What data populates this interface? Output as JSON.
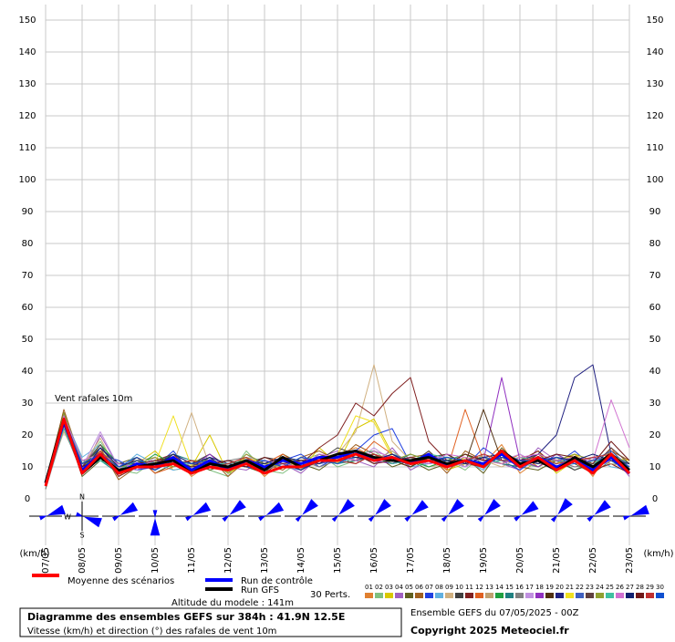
{
  "chart_data": {
    "type": "line",
    "title": "Diagramme des ensembles GEFS sur 384h : 41.9N 12.5E",
    "subtitle": "Vitesse (km/h) et direction (°) des rafales de vent 10m",
    "annotation": "Vent rafales 10m",
    "y_unit": "(km/h)",
    "altitude": "Altitude du modele : 141m",
    "run_info": "Ensemble GEFS du 07/05/2025 - 00Z",
    "copyright": "Copyright 2025 Meteociel.fr",
    "perts_label": "30 Perts.",
    "categories": [
      "07/05",
      null,
      "08/05",
      null,
      "09/05",
      null,
      "10/05",
      null,
      "11/05",
      null,
      "12/05",
      null,
      "13/05",
      null,
      "14/05",
      null,
      "15/05",
      null,
      "16/05",
      null,
      "17/05",
      null,
      "18/05",
      null,
      "19/05",
      null,
      "20/05",
      null,
      "21/05",
      null,
      "22/05",
      null,
      "23/05"
    ],
    "ylim": [
      0,
      150
    ],
    "yticks": [
      0,
      10,
      20,
      30,
      40,
      50,
      60,
      70,
      80,
      90,
      100,
      110,
      120,
      130,
      140,
      150
    ],
    "grid": true,
    "series": [
      {
        "name": "01",
        "color": "#e08030",
        "values": [
          5,
          22,
          9,
          15,
          7,
          12,
          9,
          14,
          7,
          11,
          9,
          13,
          7,
          12,
          10,
          11,
          14,
          16,
          13,
          12,
          10,
          15,
          9,
          12,
          11,
          17,
          8,
          12,
          10,
          14,
          7,
          16,
          8
        ]
      },
      {
        "name": "02",
        "color": "#80c080",
        "values": [
          6,
          26,
          10,
          18,
          9,
          8,
          12,
          10,
          11,
          9,
          7,
          15,
          9,
          8,
          12,
          14,
          10,
          12,
          15,
          11,
          13,
          10,
          12,
          9,
          14,
          12,
          11,
          10,
          13,
          9,
          12,
          11,
          10
        ]
      },
      {
        "name": "03",
        "color": "#d8c800",
        "values": [
          4,
          27,
          12,
          13,
          8,
          11,
          15,
          9,
          10,
          20,
          8,
          11,
          10,
          13,
          9,
          16,
          11,
          22,
          25,
          14,
          12,
          13,
          9,
          11,
          10,
          14,
          12,
          15,
          8,
          12,
          9,
          13,
          11
        ]
      },
      {
        "name": "04",
        "color": "#a060c0",
        "values": [
          5,
          24,
          8,
          20,
          10,
          9,
          11,
          13,
          8,
          12,
          10,
          9,
          12,
          11,
          8,
          13,
          15,
          12,
          10,
          16,
          9,
          12,
          14,
          10,
          13,
          11,
          9,
          16,
          12,
          10,
          11,
          14,
          7
        ]
      },
      {
        "name": "05",
        "color": "#606020",
        "values": [
          3,
          25,
          7,
          12,
          11,
          13,
          8,
          11,
          12,
          9,
          11,
          10,
          8,
          14,
          11,
          9,
          13,
          11,
          14,
          10,
          12,
          9,
          11,
          13,
          8,
          16,
          10,
          9,
          12,
          11,
          8,
          12,
          9
        ]
      },
      {
        "name": "06",
        "color": "#a06020",
        "values": [
          5,
          28,
          11,
          16,
          6,
          10,
          12,
          12,
          9,
          13,
          7,
          12,
          11,
          9,
          13,
          15,
          12,
          17,
          14,
          11,
          13,
          14,
          8,
          15,
          12,
          13,
          11,
          14,
          10,
          13,
          9,
          15,
          12
        ]
      },
      {
        "name": "07",
        "color": "#2040e0",
        "values": [
          4,
          23,
          9,
          14,
          12,
          9,
          10,
          15,
          8,
          11,
          12,
          10,
          9,
          12,
          14,
          10,
          13,
          15,
          20,
          22,
          11,
          13,
          12,
          10,
          16,
          12,
          9,
          13,
          11,
          15,
          10,
          12,
          8
        ]
      },
      {
        "name": "08",
        "color": "#60b0e0",
        "values": [
          6,
          26,
          13,
          17,
          9,
          14,
          11,
          9,
          10,
          12,
          8,
          13,
          12,
          10,
          9,
          14,
          11,
          13,
          12,
          15,
          10,
          11,
          13,
          12,
          9,
          15,
          11,
          12,
          10,
          11,
          13,
          10,
          9
        ]
      },
      {
        "name": "09",
        "color": "#d0b080",
        "values": [
          5,
          21,
          10,
          19,
          8,
          12,
          13,
          11,
          27,
          10,
          9,
          14,
          10,
          11,
          12,
          13,
          14,
          21,
          42,
          18,
          12,
          10,
          11,
          14,
          12,
          10,
          13,
          11,
          12,
          14,
          10,
          13,
          11
        ]
      },
      {
        "name": "10",
        "color": "#404040",
        "values": [
          4,
          27,
          8,
          13,
          10,
          11,
          9,
          12,
          11,
          14,
          10,
          11,
          13,
          12,
          10,
          12,
          16,
          14,
          13,
          12,
          11,
          15,
          10,
          12,
          13,
          11,
          10,
          14,
          12,
          9,
          11,
          12,
          10
        ]
      },
      {
        "name": "11",
        "color": "#802020",
        "values": [
          5,
          26,
          9,
          15,
          7,
          10,
          12,
          14,
          9,
          10,
          11,
          13,
          8,
          12,
          11,
          16,
          20,
          30,
          26,
          33,
          38,
          18,
          12,
          11,
          10,
          14,
          12,
          15,
          10,
          13,
          9,
          11,
          8
        ]
      },
      {
        "name": "12",
        "color": "#e06020",
        "values": [
          5,
          24,
          10,
          14,
          9,
          13,
          8,
          10,
          12,
          11,
          9,
          12,
          11,
          14,
          10,
          12,
          13,
          12,
          18,
          14,
          11,
          13,
          9,
          28,
          12,
          11,
          14,
          10,
          13,
          12,
          11,
          13,
          9
        ]
      },
      {
        "name": "13",
        "color": "#c0a070",
        "values": [
          6,
          25,
          11,
          16,
          10,
          12,
          10,
          13,
          9,
          12,
          10,
          11,
          12,
          10,
          13,
          11,
          14,
          13,
          12,
          15,
          11,
          12,
          13,
          10,
          14,
          12,
          11,
          13,
          10,
          14,
          12,
          11,
          10
        ]
      },
      {
        "name": "14",
        "color": "#20a040",
        "values": [
          4,
          23,
          9,
          17,
          11,
          10,
          14,
          11,
          10,
          13,
          9,
          12,
          10,
          13,
          11,
          12,
          12,
          14,
          15,
          13,
          12,
          10,
          12,
          14,
          11,
          13,
          12,
          10,
          14,
          11,
          13,
          12,
          9
        ]
      },
      {
        "name": "15",
        "color": "#208080",
        "values": [
          5,
          26,
          12,
          12,
          8,
          11,
          11,
          14,
          12,
          10,
          11,
          10,
          11,
          12,
          9,
          13,
          11,
          12,
          13,
          11,
          14,
          12,
          10,
          12,
          13,
          11,
          10,
          12,
          11,
          13,
          10,
          14,
          11
        ]
      },
      {
        "name": "16",
        "color": "#808080",
        "values": [
          3,
          22,
          8,
          15,
          9,
          13,
          10,
          12,
          9,
          11,
          12,
          13,
          9,
          11,
          12,
          10,
          12,
          15,
          11,
          14,
          10,
          13,
          11,
          12,
          10,
          15,
          11,
          13,
          12,
          10,
          11,
          13,
          8
        ]
      },
      {
        "name": "17",
        "color": "#c090e0",
        "values": [
          5,
          25,
          10,
          21,
          10,
          9,
          13,
          10,
          11,
          12,
          8,
          14,
          10,
          12,
          11,
          13,
          14,
          12,
          16,
          12,
          11,
          14,
          12,
          10,
          13,
          12,
          14,
          11,
          13,
          12,
          10,
          12,
          11
        ]
      },
      {
        "name": "18",
        "color": "#9030c0",
        "values": [
          4,
          24,
          9,
          14,
          8,
          12,
          11,
          11,
          10,
          14,
          9,
          11,
          12,
          10,
          13,
          11,
          13,
          14,
          12,
          11,
          13,
          12,
          11,
          13,
          12,
          38,
          12,
          10,
          14,
          11,
          13,
          12,
          10
        ]
      },
      {
        "name": "19",
        "color": "#503010",
        "values": [
          6,
          27,
          11,
          13,
          9,
          10,
          12,
          13,
          8,
          11,
          10,
          12,
          11,
          13,
          10,
          14,
          12,
          13,
          14,
          12,
          10,
          13,
          14,
          11,
          28,
          12,
          11,
          13,
          10,
          12,
          11,
          14,
          10
        ]
      },
      {
        "name": "20",
        "color": "#202080",
        "values": [
          5,
          26,
          10,
          16,
          11,
          11,
          9,
          12,
          10,
          13,
          11,
          10,
          12,
          11,
          9,
          12,
          13,
          14,
          13,
          11,
          12,
          11,
          13,
          12,
          11,
          13,
          12,
          14,
          20,
          38,
          42,
          14,
          9
        ]
      },
      {
        "name": "21",
        "color": "#f0e020",
        "values": [
          4,
          23,
          8,
          15,
          10,
          12,
          11,
          26,
          10,
          12,
          9,
          13,
          11,
          12,
          10,
          13,
          14,
          26,
          24,
          13,
          11,
          12,
          10,
          13,
          12,
          11,
          13,
          12,
          11,
          14,
          10,
          13,
          12
        ]
      },
      {
        "name": "22",
        "color": "#4060c0",
        "values": [
          5,
          25,
          9,
          14,
          9,
          10,
          12,
          11,
          9,
          11,
          10,
          12,
          10,
          11,
          12,
          11,
          12,
          13,
          12,
          14,
          12,
          11,
          12,
          11,
          13,
          12,
          11,
          13,
          12,
          11,
          12,
          15,
          10
        ]
      },
      {
        "name": "23",
        "color": "#604040",
        "values": [
          6,
          24,
          10,
          17,
          8,
          13,
          10,
          12,
          11,
          10,
          12,
          11,
          9,
          13,
          11,
          12,
          13,
          12,
          14,
          12,
          11,
          13,
          12,
          12,
          11,
          14,
          10,
          12,
          13,
          12,
          10,
          16,
          11
        ]
      },
      {
        "name": "24",
        "color": "#90a030",
        "values": [
          4,
          27,
          11,
          15,
          10,
          11,
          13,
          10,
          12,
          12,
          8,
          14,
          11,
          10,
          13,
          12,
          11,
          15,
          13,
          12,
          14,
          12,
          11,
          14,
          12,
          13,
          12,
          11,
          12,
          14,
          12,
          13,
          10
        ]
      },
      {
        "name": "25",
        "color": "#40c0a0",
        "values": [
          5,
          22,
          9,
          12,
          9,
          12,
          11,
          13,
          10,
          11,
          11,
          12,
          10,
          12,
          11,
          13,
          12,
          14,
          13,
          11,
          12,
          14,
          13,
          12,
          11,
          12,
          13,
          12,
          11,
          12,
          11,
          14,
          9
        ]
      },
      {
        "name": "26",
        "color": "#d070d0",
        "values": [
          5,
          26,
          12,
          14,
          11,
          10,
          12,
          11,
          9,
          12,
          10,
          11,
          12,
          11,
          10,
          14,
          13,
          12,
          15,
          13,
          12,
          11,
          14,
          13,
          12,
          11,
          13,
          14,
          12,
          13,
          12,
          31,
          16
        ]
      },
      {
        "name": "27",
        "color": "#102070",
        "values": [
          4,
          25,
          8,
          16,
          10,
          12,
          10,
          14,
          11,
          13,
          9,
          12,
          11,
          13,
          12,
          11,
          14,
          13,
          12,
          14,
          11,
          13,
          12,
          11,
          13,
          14,
          12,
          11,
          13,
          12,
          14,
          12,
          11
        ]
      },
      {
        "name": "28",
        "color": "#701818",
        "values": [
          6,
          24,
          10,
          13,
          8,
          11,
          12,
          12,
          10,
          11,
          12,
          10,
          13,
          11,
          12,
          12,
          13,
          14,
          11,
          12,
          13,
          12,
          11,
          14,
          12,
          13,
          11,
          12,
          14,
          13,
          11,
          18,
          12
        ]
      },
      {
        "name": "29",
        "color": "#c03030",
        "values": [
          5,
          23,
          9,
          15,
          9,
          10,
          11,
          11,
          12,
          10,
          11,
          13,
          10,
          12,
          11,
          13,
          12,
          11,
          14,
          12,
          12,
          13,
          11,
          12,
          14,
          12,
          12,
          13,
          11,
          12,
          13,
          14,
          8
        ]
      },
      {
        "name": "30",
        "color": "#1050d0",
        "values": [
          4,
          25,
          11,
          14,
          10,
          13,
          9,
          12,
          11,
          12,
          10,
          11,
          12,
          10,
          13,
          12,
          11,
          14,
          13,
          12,
          11,
          12,
          13,
          12,
          11,
          13,
          12,
          12,
          13,
          11,
          12,
          13,
          10
        ]
      },
      {
        "name": "Run de contrôle",
        "color": "#0000ff",
        "values": [
          5,
          24,
          9,
          14,
          8,
          11,
          10,
          13,
          9,
          12,
          9,
          12,
          10,
          12,
          11,
          13,
          13,
          15,
          12,
          13,
          11,
          14,
          10,
          12,
          11,
          14,
          10,
          13,
          10,
          12,
          9,
          13,
          8
        ]
      },
      {
        "name": "Run GFS",
        "color": "#000000",
        "values": [
          5,
          25,
          8,
          13,
          9,
          10,
          11,
          12,
          8,
          11,
          10,
          12,
          9,
          13,
          10,
          12,
          14,
          15,
          13,
          12,
          12,
          13,
          11,
          12,
          10,
          15,
          11,
          12,
          9,
          13,
          10,
          14,
          9
        ]
      },
      {
        "name": "Moyenne des scénarios",
        "color": "#ff0000",
        "values": [
          4,
          25,
          8,
          14,
          8,
          10,
          10,
          11,
          8,
          10,
          9,
          11,
          8,
          10,
          10,
          12,
          12,
          14,
          12,
          13,
          11,
          12,
          10,
          12,
          10,
          15,
          10,
          13,
          9,
          12,
          8,
          14,
          8
        ]
      }
    ],
    "wind": {
      "color": "#0000ff",
      "compass": [
        "N",
        "W",
        "S"
      ],
      "directions": [
        250,
        290,
        240,
        360,
        240,
        230,
        240,
        225,
        225,
        225,
        230,
        225,
        225,
        235,
        220,
        230,
        250
      ]
    }
  }
}
